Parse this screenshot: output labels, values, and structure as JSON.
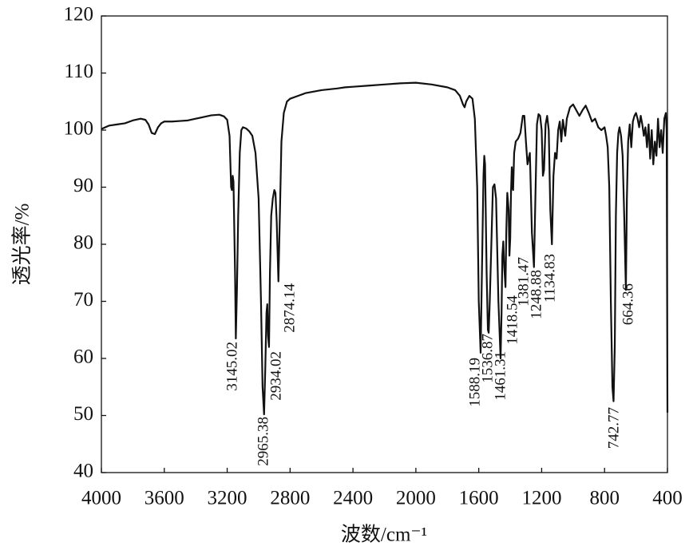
{
  "chart_data": {
    "type": "line",
    "x_label": "波数/cm⁻¹",
    "y_label": "透光率/%",
    "xlim": [
      4000,
      400
    ],
    "ylim": [
      40,
      120
    ],
    "xticks": [
      4000,
      3600,
      3200,
      2800,
      2400,
      2000,
      1600,
      1200,
      800,
      400
    ],
    "yticks": [
      40,
      50,
      60,
      70,
      80,
      90,
      100,
      110,
      120
    ],
    "color": "#111111",
    "x": [
      4000,
      3950,
      3900,
      3850,
      3800,
      3750,
      3720,
      3700,
      3680,
      3660,
      3640,
      3620,
      3600,
      3550,
      3500,
      3450,
      3400,
      3350,
      3300,
      3250,
      3220,
      3200,
      3185,
      3175,
      3170,
      3165,
      3160,
      3150,
      3145.02,
      3138,
      3130,
      3120,
      3110,
      3100,
      3080,
      3060,
      3040,
      3020,
      3000,
      2985,
      2975,
      2965.38,
      2958,
      2950,
      2945,
      2940,
      2934.02,
      2928,
      2920,
      2910,
      2900,
      2893,
      2885,
      2874.14,
      2865,
      2855,
      2840,
      2820,
      2800,
      2750,
      2700,
      2600,
      2500,
      2450,
      2400,
      2300,
      2200,
      2100,
      2000,
      1900,
      1800,
      1750,
      1720,
      1700,
      1690,
      1680,
      1660,
      1640,
      1625,
      1610,
      1600,
      1588.19,
      1580,
      1570,
      1565,
      1560,
      1550,
      1542,
      1536.87,
      1530,
      1520,
      1510,
      1500,
      1490,
      1475,
      1461.31,
      1455,
      1450,
      1444,
      1438,
      1430,
      1425,
      1418.54,
      1410,
      1405,
      1400,
      1395,
      1390,
      1385,
      1381.47,
      1375,
      1365,
      1350,
      1335,
      1320,
      1310,
      1300,
      1290,
      1275,
      1262,
      1248.88,
      1240,
      1230,
      1220,
      1210,
      1200,
      1192,
      1185,
      1175,
      1165,
      1155,
      1145,
      1134.83,
      1125,
      1115,
      1105,
      1095,
      1085,
      1075,
      1065,
      1050,
      1040,
      1020,
      1000,
      980,
      960,
      940,
      920,
      900,
      880,
      860,
      840,
      820,
      800,
      790,
      780,
      770,
      760,
      750,
      742.77,
      735,
      728,
      720,
      712,
      705,
      695,
      685,
      675,
      664.36,
      658,
      650,
      640,
      630,
      620,
      610,
      600,
      590,
      580,
      570,
      560,
      550,
      540,
      530,
      520,
      510,
      500,
      490,
      480,
      470,
      460,
      450,
      440,
      430,
      420,
      410,
      405,
      400
    ],
    "values": [
      100.2,
      100.8,
      101,
      101.2,
      101.7,
      102,
      101.8,
      101,
      99.5,
      99.3,
      100.5,
      101.2,
      101.5,
      101.5,
      101.6,
      101.7,
      102,
      102.3,
      102.6,
      102.7,
      102.4,
      101.8,
      99,
      90,
      89.5,
      92,
      91,
      75,
      63.5,
      72,
      85,
      96,
      100,
      100.5,
      100.3,
      99.8,
      99,
      96,
      88,
      70,
      55,
      50.2,
      58,
      68,
      69.5,
      64,
      62,
      75,
      85,
      88,
      89.5,
      89,
      84,
      73.5,
      85,
      98,
      103,
      105,
      105.5,
      106,
      106.5,
      107,
      107.3,
      107.5,
      107.6,
      107.8,
      108,
      108.2,
      108.3,
      108,
      107.5,
      107,
      106,
      104.5,
      104,
      105,
      106,
      105.5,
      102,
      90,
      70,
      61,
      75,
      92,
      95.5,
      94,
      75,
      65,
      64.5,
      70,
      80,
      90,
      90.5,
      88,
      70,
      60,
      68,
      78,
      80.5,
      76,
      72.5,
      82,
      89,
      86,
      78,
      81,
      89,
      93.5,
      90,
      89.5,
      96,
      98,
      98.5,
      99.5,
      102.5,
      102.5,
      98,
      94,
      96,
      82,
      76,
      88,
      101,
      102.8,
      102.5,
      100,
      92,
      93,
      101,
      102.5,
      100,
      86,
      80,
      92,
      96,
      95,
      100,
      101.5,
      98,
      101.8,
      99,
      102,
      104,
      104.5,
      103.5,
      102.5,
      103.5,
      104.3,
      103,
      101.5,
      102,
      100.5,
      100,
      100.5,
      99,
      97,
      90,
      70,
      55,
      52.5,
      62,
      85,
      96,
      99.5,
      100.5,
      99,
      95.5,
      85,
      72,
      88,
      98,
      101,
      97,
      101.5,
      102.5,
      103,
      102,
      100.5,
      102.5,
      101,
      99,
      100.5,
      97,
      101,
      95,
      100,
      94,
      98,
      95.5,
      102,
      97,
      100,
      96,
      102,
      103,
      100,
      50.5
    ],
    "annotations": [
      3145.02,
      2965.38,
      2934.02,
      2874.14,
      1588.19,
      1536.87,
      1461.31,
      1418.54,
      1381.47,
      1248.88,
      1134.83,
      742.77,
      664.36
    ]
  }
}
